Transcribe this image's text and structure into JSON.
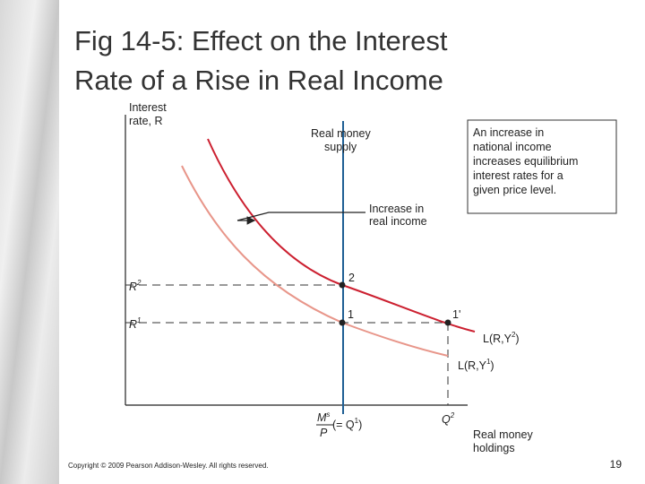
{
  "title": {
    "lines": [
      "Fig 14-5: Effect on the Interest",
      "Rate of a Rise in Real Income"
    ]
  },
  "diagram": {
    "y_axis_label": [
      "Interest",
      "rate, R"
    ],
    "x_axis_label": [
      "Real money",
      "holdings"
    ],
    "supply_label": [
      "Real money",
      "supply"
    ],
    "shift_label": [
      "Increase in",
      "real income"
    ],
    "r2": {
      "text": "R",
      "sup": "2"
    },
    "r1": {
      "text": "R",
      "sup": "1"
    },
    "points": [
      "2",
      "1",
      "1'"
    ],
    "curve_y2": {
      "before": "L(R,Y",
      "sup": "2",
      "after": ")"
    },
    "curve_y1": {
      "before": "L(R,Y",
      "sup": "1",
      "after": ")"
    },
    "ms_p": {
      "num": "M",
      "sup": "s",
      "den": "P",
      "eq": "(= Q",
      "eq_sup": "1",
      "eq_after": ")"
    },
    "q2": {
      "text": "Q",
      "sup": "2"
    }
  },
  "note": [
    "An increase in",
    "national income",
    "increases equilibrium",
    "interest rates for a",
    "given price level."
  ],
  "footer": {
    "copyright": "Copyright © 2009 Pearson Addison-Wesley. All rights reserved.",
    "page": "19"
  }
}
